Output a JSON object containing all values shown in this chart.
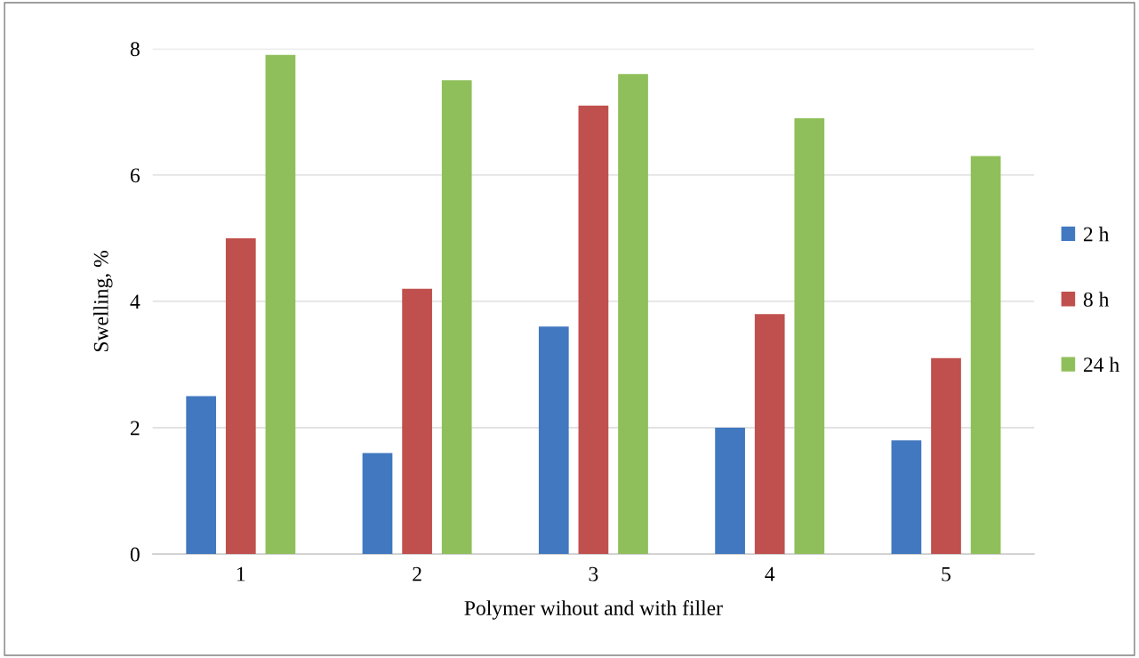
{
  "chart_data": {
    "type": "bar",
    "xlabel": "Polymer wihout and with filler",
    "ylabel": "Swelling, %",
    "categories": [
      "1",
      "2",
      "3",
      "4",
      "5"
    ],
    "series": [
      {
        "name": "2 h",
        "color": "#4178c0",
        "values": [
          2.5,
          1.6,
          3.6,
          2.0,
          1.8
        ]
      },
      {
        "name": "8 h",
        "color": "#c0504d",
        "values": [
          5.0,
          4.2,
          7.1,
          3.8,
          3.1
        ]
      },
      {
        "name": "24 h",
        "color": "#8fbf5a",
        "values": [
          7.9,
          7.5,
          7.6,
          6.9,
          6.3
        ]
      }
    ],
    "ylim": [
      0,
      8
    ],
    "yticks": [
      0,
      2,
      4,
      6,
      8
    ],
    "grid": "y",
    "legend": "right"
  }
}
